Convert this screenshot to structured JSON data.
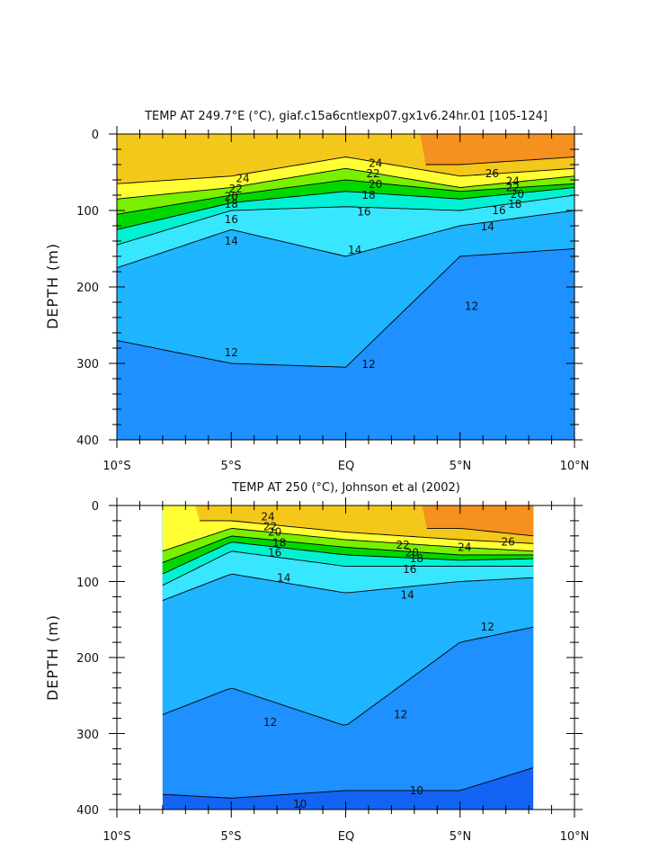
{
  "chart_data": [
    {
      "type": "contour",
      "title": "TEMP AT 249.7°E (°C), giaf.c15a6cntlexp07.gx1v6.24hr.01 [105-124]",
      "ylabel": "DEPTH (m)",
      "xticks": [
        "10°S",
        "5°S",
        "EQ",
        "5°N",
        "10°N"
      ],
      "yticks": [
        "0",
        "100",
        "200",
        "300",
        "400"
      ],
      "xlim": [
        -10,
        10
      ],
      "ylim": [
        400,
        0
      ],
      "lat": [
        -10,
        -5,
        0,
        5,
        10
      ],
      "isotherms": [
        {
          "value": 26,
          "depth": [
            null,
            null,
            null,
            40,
            30
          ]
        },
        {
          "value": 24,
          "depth": [
            65,
            55,
            30,
            55,
            45
          ]
        },
        {
          "value": 22,
          "depth": [
            85,
            70,
            45,
            70,
            55
          ]
        },
        {
          "value": 20,
          "depth": [
            105,
            80,
            60,
            75,
            65
          ]
        },
        {
          "value": 18,
          "depth": [
            125,
            90,
            75,
            85,
            70
          ]
        },
        {
          "value": 16,
          "depth": [
            145,
            100,
            95,
            100,
            80
          ]
        },
        {
          "value": 14,
          "depth": [
            175,
            125,
            160,
            120,
            100
          ]
        },
        {
          "value": 12,
          "depth": [
            270,
            300,
            305,
            160,
            150
          ]
        }
      ],
      "contour_labels": [
        {
          "text": "24",
          "lat": -4.5,
          "depth": 58
        },
        {
          "text": "22",
          "lat": -4.8,
          "depth": 72
        },
        {
          "text": "20",
          "lat": -5.0,
          "depth": 82
        },
        {
          "text": "18",
          "lat": -5.0,
          "depth": 92
        },
        {
          "text": "16",
          "lat": -5.0,
          "depth": 112
        },
        {
          "text": "14",
          "lat": -5.0,
          "depth": 140
        },
        {
          "text": "24",
          "lat": 1.3,
          "depth": 38
        },
        {
          "text": "22",
          "lat": 1.2,
          "depth": 52
        },
        {
          "text": "20",
          "lat": 1.3,
          "depth": 66
        },
        {
          "text": "18",
          "lat": 1.0,
          "depth": 80
        },
        {
          "text": "16",
          "lat": 0.8,
          "depth": 102
        },
        {
          "text": "14",
          "lat": 0.4,
          "depth": 152
        },
        {
          "text": "26",
          "lat": 6.4,
          "depth": 52
        },
        {
          "text": "24",
          "lat": 7.3,
          "depth": 62
        },
        {
          "text": "22",
          "lat": 7.3,
          "depth": 70
        },
        {
          "text": "20",
          "lat": 7.5,
          "depth": 79
        },
        {
          "text": "18",
          "lat": 7.4,
          "depth": 92
        },
        {
          "text": "16",
          "lat": 6.7,
          "depth": 100
        },
        {
          "text": "14",
          "lat": 6.2,
          "depth": 121
        },
        {
          "text": "12",
          "lat": 5.5,
          "depth": 225
        },
        {
          "text": "12",
          "lat": -5.0,
          "depth": 286
        },
        {
          "text": "12",
          "lat": 1.0,
          "depth": 301
        }
      ],
      "color_scale": {
        "levels": [
          10,
          12,
          14,
          16,
          18,
          20,
          22,
          24,
          26
        ],
        "colors": [
          "#1464F4",
          "#1E90FF",
          "#1EB4FF",
          "#38E6FF",
          "#00F2D2",
          "#00D700",
          "#78F000",
          "#FFFF33",
          "#F4C81A",
          "#F6901E",
          "#FC5014"
        ]
      }
    },
    {
      "type": "contour",
      "title": "TEMP AT 250 (°C), Johnson et al (2002)",
      "ylabel": "DEPTH (m)",
      "xticks": [
        "10°S",
        "5°S",
        "EQ",
        "5°N",
        "10°N"
      ],
      "yticks": [
        "0",
        "100",
        "200",
        "300",
        "400"
      ],
      "xlim": [
        -10,
        10
      ],
      "ylim": [
        400,
        0
      ],
      "data_extent_lat": [
        -8,
        8.2
      ],
      "lat": [
        -8,
        -5,
        0,
        5,
        8.2
      ],
      "isotherms": [
        {
          "value": 26,
          "depth": [
            null,
            null,
            null,
            30,
            40
          ]
        },
        {
          "value": 24,
          "depth": [
            null,
            20,
            35,
            45,
            50
          ]
        },
        {
          "value": 22,
          "depth": [
            60,
            30,
            45,
            55,
            60
          ]
        },
        {
          "value": 20,
          "depth": [
            75,
            40,
            55,
            65,
            65
          ]
        },
        {
          "value": 18,
          "depth": [
            90,
            48,
            65,
            72,
            70
          ]
        },
        {
          "value": 16,
          "depth": [
            105,
            60,
            80,
            80,
            80
          ]
        },
        {
          "value": 14,
          "depth": [
            125,
            90,
            115,
            100,
            95
          ]
        },
        {
          "value": 12,
          "depth": [
            275,
            240,
            290,
            180,
            160
          ]
        },
        {
          "value": 10,
          "depth": [
            380,
            385,
            375,
            375,
            345
          ]
        }
      ],
      "contour_labels": [
        {
          "text": "24",
          "lat": -3.4,
          "depth": 15
        },
        {
          "text": "22",
          "lat": -3.3,
          "depth": 28
        },
        {
          "text": "20",
          "lat": -3.1,
          "depth": 35
        },
        {
          "text": "18",
          "lat": -2.9,
          "depth": 49
        },
        {
          "text": "16",
          "lat": -3.1,
          "depth": 62
        },
        {
          "text": "14",
          "lat": -2.7,
          "depth": 95
        },
        {
          "text": "22",
          "lat": 2.5,
          "depth": 52
        },
        {
          "text": "20",
          "lat": 2.9,
          "depth": 62
        },
        {
          "text": "18",
          "lat": 3.1,
          "depth": 70
        },
        {
          "text": "16",
          "lat": 2.8,
          "depth": 84
        },
        {
          "text": "14",
          "lat": 2.7,
          "depth": 118
        },
        {
          "text": "24",
          "lat": 5.2,
          "depth": 55
        },
        {
          "text": "26",
          "lat": 7.1,
          "depth": 48
        },
        {
          "text": "12",
          "lat": 6.2,
          "depth": 160
        },
        {
          "text": "12",
          "lat": -3.3,
          "depth": 285
        },
        {
          "text": "12",
          "lat": 2.4,
          "depth": 275
        },
        {
          "text": "10",
          "lat": -2.0,
          "depth": 393
        },
        {
          "text": "10",
          "lat": 3.1,
          "depth": 375
        }
      ],
      "color_scale": {
        "levels": [
          10,
          12,
          14,
          16,
          18,
          20,
          22,
          24,
          26
        ],
        "colors": [
          "#1464F4",
          "#1E90FF",
          "#1EB4FF",
          "#38E6FF",
          "#00F2D2",
          "#00D700",
          "#78F000",
          "#FFFF33",
          "#F4C81A",
          "#F6901E",
          "#FC5014"
        ]
      }
    }
  ]
}
